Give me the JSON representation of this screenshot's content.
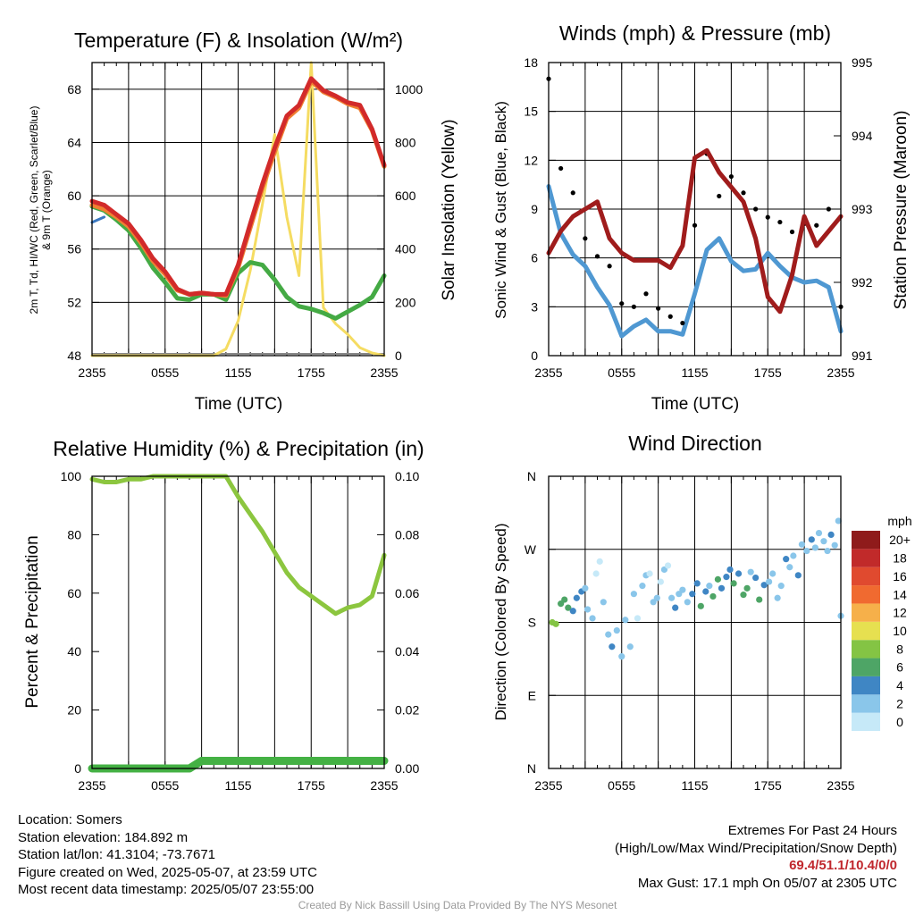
{
  "panels": {
    "temp": {
      "title": "Temperature (F) & Insolation (W/m²)",
      "ylabel_left_line1": "2m T, Td, HI/WC (Red, Green, Scarlet/Blue)",
      "ylabel_left_line2": "& 9m T (Orange)",
      "ylabel_right": "Solar Insolation (Yellow)",
      "xlabel": "Time (UTC)"
    },
    "wind": {
      "title": "Winds (mph) & Pressure (mb)",
      "ylabel_left": "Sonic Wind & Gust (Blue, Black)",
      "ylabel_right": "Station Pressure (Maroon)",
      "xlabel": "Time (UTC)"
    },
    "rh": {
      "title": "Relative Humidity (%) & Precipitation (in)",
      "ylabel_left": "Percent & Precipitation"
    },
    "dir": {
      "title": "Wind Direction",
      "ylabel_left": "Direction (Colored By Speed)",
      "colorbar_title": "mph"
    }
  },
  "info": {
    "location": "Location: Somers",
    "elevation": "Station elevation: 184.892 m",
    "latlon": "Station lat/lon: 41.3104; -73.7671",
    "created": "Figure created on Wed, 2025-05-07, at 23:59 UTC",
    "recent": "Most recent data timestamp: 2025/05/07 23:55:00"
  },
  "extremes": {
    "heading": "Extremes For Past 24 Hours",
    "subheading": "(High/Low/Max Wind/Precipitation/Snow Depth)",
    "values": "69.4/51.1/10.4/0/0",
    "gust": "Max Gust: 17.1 mph On 05/07 at 2305 UTC"
  },
  "credit": "Created By Nick Bassill Using Data Provided By The NYS Mesonet",
  "colors": {
    "temp": "#d22a2a",
    "temp9m": "#f07f32",
    "dewpoint": "#44aa44",
    "heatindex": "#3a78c0",
    "solar": "#f5dc62",
    "wind": "#4f98d2",
    "gust": "#000000",
    "pressure": "#a01c1c",
    "rh": "#8cc63f",
    "precip": "#44b144"
  },
  "chart_data": [
    {
      "type": "line",
      "title": "Temperature (F) & Insolation (W/m²)",
      "xlabel": "Time (UTC)",
      "x_ticks": [
        "2355",
        "0555",
        "1155",
        "1755",
        "2355"
      ],
      "x_hours": [
        0,
        1,
        2,
        3,
        4,
        5,
        6,
        7,
        8,
        9,
        10,
        11,
        12,
        13,
        14,
        15,
        16,
        17,
        18,
        19,
        20,
        21,
        22,
        23,
        24
      ],
      "ylim": [
        48,
        70
      ],
      "y_ticks": [
        48,
        52,
        56,
        60,
        64,
        68
      ],
      "y2lim": [
        0,
        1100
      ],
      "y2_ticks": [
        0,
        200,
        400,
        600,
        800,
        1000
      ],
      "series": [
        {
          "name": "2m T",
          "axis": "left",
          "color": "#d22a2a",
          "values": [
            59.6,
            59.3,
            58.6,
            57.9,
            56.7,
            55.3,
            54.3,
            53.0,
            52.6,
            52.7,
            52.6,
            52.6,
            54.8,
            57.9,
            60.9,
            63.6,
            66.0,
            66.8,
            68.8,
            67.9,
            67.5,
            67.0,
            66.8,
            65.0,
            62.3
          ]
        },
        {
          "name": "9m T",
          "axis": "left",
          "color": "#f07f32",
          "values": [
            59.3,
            59.0,
            58.4,
            57.7,
            56.5,
            55.1,
            54.1,
            52.9,
            52.6,
            52.7,
            52.6,
            52.5,
            54.6,
            57.6,
            60.6,
            63.3,
            65.8,
            66.6,
            68.6,
            67.8,
            67.4,
            66.9,
            66.6,
            64.9,
            62.2
          ]
        },
        {
          "name": "Td",
          "axis": "left",
          "color": "#44aa44",
          "values": [
            59.2,
            58.9,
            58.2,
            57.4,
            56.1,
            54.6,
            53.5,
            52.3,
            52.2,
            52.6,
            52.6,
            52.2,
            54.2,
            55.0,
            54.8,
            53.7,
            52.4,
            51.7,
            51.5,
            51.2,
            50.8,
            51.3,
            51.8,
            52.4,
            54.0
          ]
        },
        {
          "name": "HI/WC",
          "axis": "left",
          "color": "#3a78c0",
          "values": [
            58.0,
            58.4,
            null,
            null,
            null,
            null,
            null,
            null,
            null,
            null,
            null,
            null,
            null,
            null,
            null,
            null,
            null,
            null,
            null,
            null,
            null,
            null,
            null,
            null,
            null
          ]
        },
        {
          "name": "Solar",
          "axis": "right",
          "color": "#f5dc62",
          "values": [
            0,
            0,
            0,
            0,
            0,
            0,
            0,
            0,
            0,
            0,
            0,
            25,
            130,
            320,
            570,
            830,
            520,
            300,
            1100,
            180,
            120,
            80,
            30,
            10,
            0
          ]
        }
      ]
    },
    {
      "type": "line",
      "title": "Winds (mph) & Pressure (mb)",
      "xlabel": "Time (UTC)",
      "x_ticks": [
        "2355",
        "0555",
        "1155",
        "1755",
        "2355"
      ],
      "x_hours": [
        0,
        1,
        2,
        3,
        4,
        5,
        6,
        7,
        8,
        9,
        10,
        11,
        12,
        13,
        14,
        15,
        16,
        17,
        18,
        19,
        20,
        21,
        22,
        23,
        24
      ],
      "ylim": [
        0,
        18
      ],
      "y_ticks": [
        0,
        3,
        6,
        9,
        12,
        15,
        18
      ],
      "y2lim": [
        991,
        995
      ],
      "y2_ticks": [
        991,
        992,
        993,
        994,
        995
      ],
      "series": [
        {
          "name": "Sonic Wind",
          "axis": "left",
          "color": "#4f98d2",
          "values": [
            10.4,
            7.5,
            6.2,
            5.5,
            4.2,
            3.1,
            1.2,
            1.8,
            2.2,
            1.5,
            1.5,
            1.3,
            3.8,
            6.5,
            7.2,
            5.8,
            5.2,
            5.3,
            6.3,
            5.5,
            4.8,
            4.5,
            4.6,
            4.2,
            1.5
          ]
        },
        {
          "name": "Gust",
          "axis": "left",
          "color": "#000000",
          "values": [
            17.0,
            11.5,
            10.0,
            7.2,
            6.1,
            5.5,
            3.2,
            3.0,
            3.8,
            2.9,
            2.4,
            2.0,
            8.0,
            12.4,
            9.8,
            11.0,
            10.0,
            9.0,
            8.5,
            8.2,
            7.6,
            8.1,
            8.0,
            9.0,
            3.0
          ]
        },
        {
          "name": "Station Pressure",
          "axis": "right",
          "color": "#a01c1c",
          "values": [
            992.4,
            992.7,
            992.9,
            993.0,
            993.1,
            992.6,
            992.4,
            992.3,
            992.3,
            992.3,
            992.2,
            992.5,
            993.7,
            993.8,
            993.5,
            993.3,
            993.1,
            992.6,
            991.8,
            991.6,
            992.1,
            992.9,
            992.5,
            992.7,
            992.9
          ]
        }
      ]
    },
    {
      "type": "line",
      "title": "Relative Humidity (%) & Precipitation (in)",
      "x_ticks": [
        "2355",
        "0555",
        "1155",
        "1755",
        "2355"
      ],
      "x_hours": [
        0,
        1,
        2,
        3,
        4,
        5,
        6,
        7,
        8,
        9,
        10,
        11,
        12,
        13,
        14,
        15,
        16,
        17,
        18,
        19,
        20,
        21,
        22,
        23,
        24
      ],
      "ylim": [
        0,
        100
      ],
      "y_ticks": [
        0,
        20,
        40,
        60,
        80,
        100
      ],
      "y2lim": [
        0,
        0.1
      ],
      "y2_ticks": [
        "0.00",
        "0.02",
        "0.04",
        "0.06",
        "0.08",
        "0.10"
      ],
      "series": [
        {
          "name": "Relative Humidity",
          "axis": "left",
          "color": "#8cc63f",
          "values": [
            99,
            98,
            98,
            99,
            99,
            100,
            100,
            100,
            100,
            100,
            100,
            100,
            93,
            87,
            81,
            74,
            67,
            62,
            59,
            56,
            53,
            55,
            56,
            59,
            73
          ]
        },
        {
          "name": "Precipitation",
          "axis": "right",
          "color": "#44b144",
          "values": [
            0,
            0,
            0,
            0,
            0,
            0,
            0,
            0,
            0,
            0.0026,
            0.0026,
            0.0026,
            0.0026,
            0.0026,
            0.0026,
            0.0026,
            0.0026,
            0.0026,
            0.0026,
            0.0026,
            0.0026,
            0.0026,
            0.0026,
            0.0026,
            0.0026
          ]
        }
      ]
    },
    {
      "type": "scatter",
      "title": "Wind Direction",
      "x_ticks": [
        "2355",
        "0555",
        "1155",
        "1755",
        "2355"
      ],
      "y_ticks": [
        "N",
        "E",
        "S",
        "W",
        "N"
      ],
      "ylim": [
        0,
        360
      ],
      "colorbar": {
        "title": "mph",
        "labels": [
          "0",
          "2",
          "4",
          "6",
          "8",
          "10",
          "12",
          "14",
          "16",
          "18",
          "20+"
        ],
        "colors": [
          "#c6e9f8",
          "#8ac6ea",
          "#3f86c4",
          "#4ea566",
          "#84c444",
          "#e6e050",
          "#f6b04a",
          "#f06a30",
          "#e04a2f",
          "#c12a2a",
          "#8f1b1b"
        ]
      },
      "points": [
        {
          "h": 0.3,
          "dir": 180,
          "spd": 8
        },
        {
          "h": 0.6,
          "dir": 178,
          "spd": 9
        },
        {
          "h": 1.0,
          "dir": 203,
          "spd": 7
        },
        {
          "h": 1.3,
          "dir": 208,
          "spd": 6
        },
        {
          "h": 1.6,
          "dir": 198,
          "spd": 6
        },
        {
          "h": 2.0,
          "dir": 194,
          "spd": 5
        },
        {
          "h": 2.3,
          "dir": 210,
          "spd": 4
        },
        {
          "h": 2.7,
          "dir": 218,
          "spd": 4
        },
        {
          "h": 3.0,
          "dir": 222,
          "spd": 3
        },
        {
          "h": 3.2,
          "dir": 196,
          "spd": 2
        },
        {
          "h": 3.6,
          "dir": 185,
          "spd": 2
        },
        {
          "h": 3.9,
          "dir": 240,
          "spd": 1
        },
        {
          "h": 4.2,
          "dir": 255,
          "spd": 1
        },
        {
          "h": 4.5,
          "dir": 205,
          "spd": 3
        },
        {
          "h": 4.9,
          "dir": 165,
          "spd": 2
        },
        {
          "h": 5.2,
          "dir": 150,
          "spd": 4
        },
        {
          "h": 5.6,
          "dir": 170,
          "spd": 3
        },
        {
          "h": 6.0,
          "dir": 138,
          "spd": 2
        },
        {
          "h": 6.3,
          "dir": 183,
          "spd": 2
        },
        {
          "h": 6.7,
          "dir": 150,
          "spd": 3
        },
        {
          "h": 7.0,
          "dir": 215,
          "spd": 2
        },
        {
          "h": 7.3,
          "dir": 185,
          "spd": 1
        },
        {
          "h": 7.7,
          "dir": 225,
          "spd": 2
        },
        {
          "h": 8.0,
          "dir": 238,
          "spd": 3
        },
        {
          "h": 8.3,
          "dir": 240,
          "spd": 1
        },
        {
          "h": 8.6,
          "dir": 205,
          "spd": 3
        },
        {
          "h": 8.9,
          "dir": 210,
          "spd": 2
        },
        {
          "h": 9.2,
          "dir": 230,
          "spd": 1
        },
        {
          "h": 9.5,
          "dir": 245,
          "spd": 2
        },
        {
          "h": 9.8,
          "dir": 250,
          "spd": 1
        },
        {
          "h": 10.1,
          "dir": 210,
          "spd": 3
        },
        {
          "h": 10.4,
          "dir": 198,
          "spd": 4
        },
        {
          "h": 10.7,
          "dir": 215,
          "spd": 2
        },
        {
          "h": 11.0,
          "dir": 220,
          "spd": 3
        },
        {
          "h": 11.4,
          "dir": 205,
          "spd": 3
        },
        {
          "h": 11.8,
          "dir": 215,
          "spd": 4
        },
        {
          "h": 12.2,
          "dir": 228,
          "spd": 4
        },
        {
          "h": 12.5,
          "dir": 200,
          "spd": 6
        },
        {
          "h": 12.9,
          "dir": 218,
          "spd": 4
        },
        {
          "h": 13.2,
          "dir": 225,
          "spd": 3
        },
        {
          "h": 13.5,
          "dir": 212,
          "spd": 6
        },
        {
          "h": 13.9,
          "dir": 233,
          "spd": 6
        },
        {
          "h": 14.2,
          "dir": 222,
          "spd": 5
        },
        {
          "h": 14.6,
          "dir": 236,
          "spd": 4
        },
        {
          "h": 14.9,
          "dir": 245,
          "spd": 4
        },
        {
          "h": 15.2,
          "dir": 228,
          "spd": 6
        },
        {
          "h": 15.6,
          "dir": 240,
          "spd": 4
        },
        {
          "h": 16.0,
          "dir": 214,
          "spd": 7
        },
        {
          "h": 16.3,
          "dir": 222,
          "spd": 6
        },
        {
          "h": 16.6,
          "dir": 242,
          "spd": 3
        },
        {
          "h": 17.0,
          "dir": 235,
          "spd": 5
        },
        {
          "h": 17.3,
          "dir": 208,
          "spd": 7
        },
        {
          "h": 17.7,
          "dir": 226,
          "spd": 4
        },
        {
          "h": 18.1,
          "dir": 230,
          "spd": 3
        },
        {
          "h": 18.4,
          "dir": 240,
          "spd": 3
        },
        {
          "h": 18.8,
          "dir": 210,
          "spd": 3
        },
        {
          "h": 19.1,
          "dir": 225,
          "spd": 3
        },
        {
          "h": 19.5,
          "dir": 258,
          "spd": 4
        },
        {
          "h": 19.8,
          "dir": 248,
          "spd": 3
        },
        {
          "h": 20.1,
          "dir": 262,
          "spd": 2
        },
        {
          "h": 20.5,
          "dir": 238,
          "spd": 4
        },
        {
          "h": 20.8,
          "dir": 276,
          "spd": 2
        },
        {
          "h": 21.2,
          "dir": 268,
          "spd": 3
        },
        {
          "h": 21.6,
          "dir": 282,
          "spd": 4
        },
        {
          "h": 21.9,
          "dir": 272,
          "spd": 3
        },
        {
          "h": 22.2,
          "dir": 290,
          "spd": 2
        },
        {
          "h": 22.6,
          "dir": 280,
          "spd": 3
        },
        {
          "h": 22.9,
          "dir": 268,
          "spd": 2
        },
        {
          "h": 23.2,
          "dir": 288,
          "spd": 5
        },
        {
          "h": 23.5,
          "dir": 275,
          "spd": 3
        },
        {
          "h": 23.8,
          "dir": 305,
          "spd": 2
        },
        {
          "h": 24.0,
          "dir": 188,
          "spd": 3
        }
      ]
    }
  ]
}
